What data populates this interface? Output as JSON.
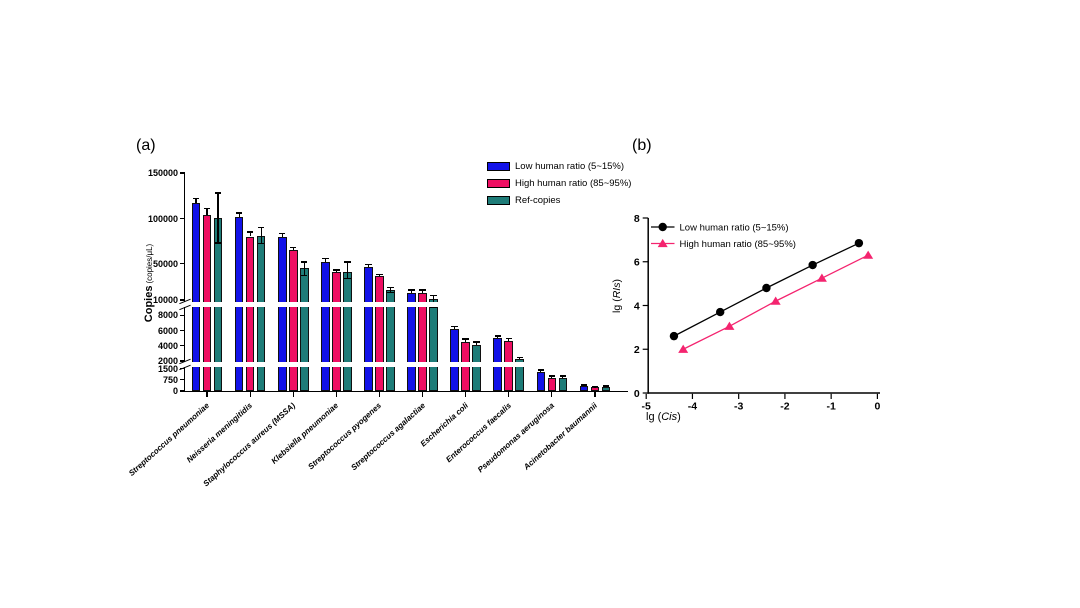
{
  "figure": {
    "panel_a_label": "(a)",
    "panel_b_label": "(b)"
  },
  "chart_data": [
    {
      "panel": "a",
      "type": "bar",
      "ylabel": "Copies (copies/μL)",
      "ylabel_main": "Copies",
      "ylabel_unit": "(copies/μL)",
      "ylim": [
        0,
        150000
      ],
      "axis_breaks": [
        2000,
        10000
      ],
      "yticks": [
        150000,
        100000,
        50000,
        10000,
        8000,
        6000,
        4000,
        2000,
        1500,
        750,
        0
      ],
      "grid": false,
      "legend_position": "top-right",
      "categories": [
        "Streptococcus pneumoniae",
        "Neisseria meningitidis",
        "Staphylococcus aureus (MSSA)",
        "Klebsiella pneumoniae",
        "Streptococcus pyogenes",
        "Streptococcus agalactiae",
        "Escherichia coli",
        "Enterococcus faecalis",
        "Pseudomonas aeruginosa",
        "Acinetobacter baumannii"
      ],
      "series": [
        {
          "name": "Low human ratio (5~15%)",
          "color": "#1212E8",
          "values": [
            117000,
            101000,
            79000,
            52000,
            46000,
            18000,
            6200,
            5000,
            1300,
            350
          ],
          "err_up": [
            5000,
            5000,
            4000,
            4000,
            3000,
            3000,
            300,
            300,
            100,
            60
          ],
          "err_down": [
            0,
            0,
            0,
            0,
            0,
            0,
            0,
            0,
            0,
            0
          ]
        },
        {
          "name": "High human ratio (85~95%)",
          "color": "#EE0E62",
          "values": [
            104000,
            80000,
            65000,
            41000,
            37000,
            18000,
            4500,
            4600,
            900,
            250
          ],
          "err_up": [
            7000,
            5000,
            3000,
            2000,
            1500,
            3000,
            400,
            400,
            100,
            50
          ],
          "err_down": [
            0,
            0,
            0,
            0,
            0,
            0,
            0,
            0,
            0,
            0
          ]
        },
        {
          "name": "Ref-copies",
          "color": "#1E7C78",
          "values": [
            100000,
            81000,
            45000,
            41000,
            21000,
            11000,
            4100,
            2200,
            900,
            280
          ],
          "err_up": [
            28000,
            9000,
            7000,
            11000,
            3000,
            4000,
            400,
            300,
            100,
            50
          ],
          "err_down": [
            27000,
            9000,
            8000,
            7000,
            3000,
            2000,
            0,
            0,
            0,
            0
          ]
        }
      ]
    },
    {
      "panel": "b",
      "type": "scatter",
      "xlabel": "lg (Cis)",
      "ylabel": "lg (RIs)",
      "xlabel_prefix": "lg",
      "xlabel_var": "Cis",
      "ylabel_prefix": "lg",
      "ylabel_var": "RIs",
      "paren_open": "(",
      "paren_close": ")",
      "xlim": [
        -5,
        0
      ],
      "ylim": [
        0,
        8
      ],
      "xticks": [
        -5,
        -4,
        -3,
        -2,
        -1,
        0
      ],
      "yticks": [
        0,
        2,
        4,
        6,
        8
      ],
      "grid": false,
      "legend_position": "top-left-inside",
      "series": [
        {
          "name": "Low human ratio (5~15%)",
          "color": "#000000",
          "marker": "circle",
          "x": [
            -4.4,
            -3.4,
            -2.4,
            -1.4,
            -0.4
          ],
          "y": [
            2.6,
            3.7,
            4.8,
            5.85,
            6.85
          ]
        },
        {
          "name": "High human ratio (85~95%)",
          "color": "#F4246F",
          "marker": "triangle",
          "x": [
            -4.2,
            -3.2,
            -2.2,
            -1.2,
            -0.2
          ],
          "y": [
            2.0,
            3.05,
            4.2,
            5.25,
            6.3
          ]
        }
      ]
    }
  ]
}
